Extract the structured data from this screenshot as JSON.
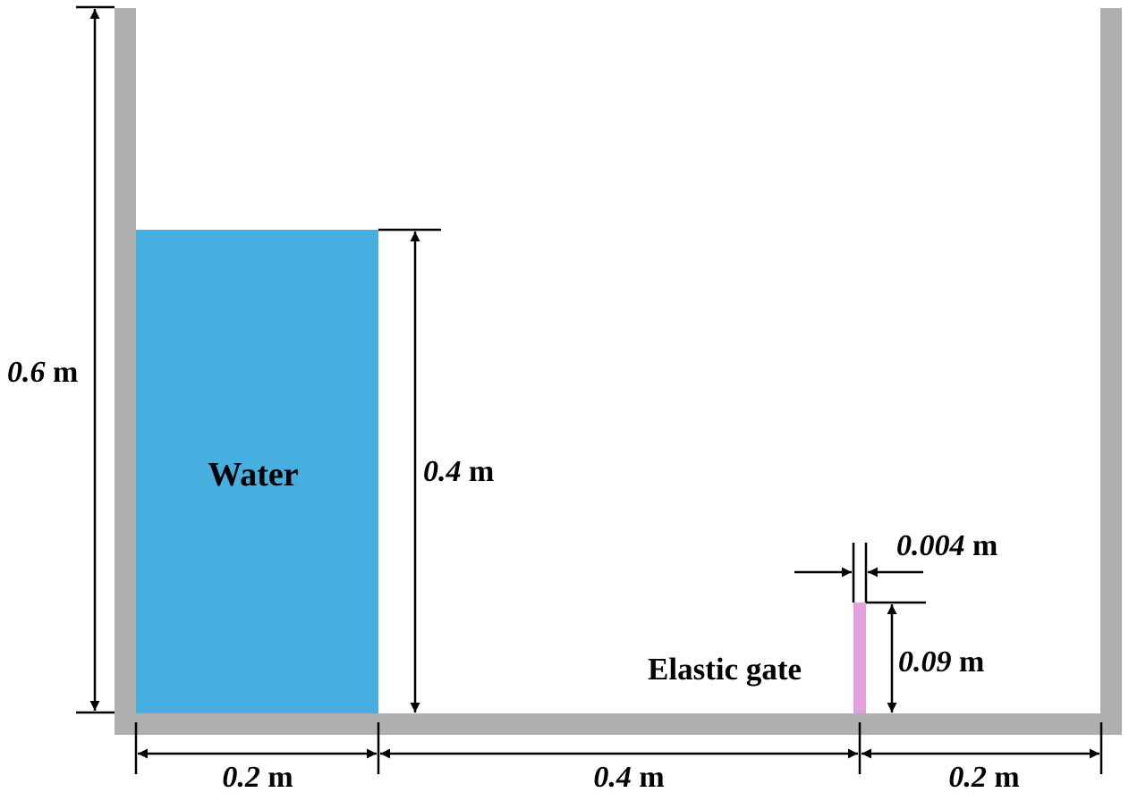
{
  "colors": {
    "wall": "#afafaf",
    "water": "#47afe0",
    "gate": "#e2a0dc",
    "dimension": "#000000",
    "background": "#ffffff"
  },
  "labels": {
    "water": "Water",
    "gate": "Elastic gate"
  },
  "dimensions": {
    "tank_height": {
      "value": "0.6",
      "unit": " m"
    },
    "water_height": {
      "value": "0.4",
      "unit": " m"
    },
    "gate_thickness": {
      "value": "0.004",
      "unit": " m"
    },
    "gate_height": {
      "value": "0.09",
      "unit": " m"
    },
    "water_width": {
      "value": "0.2",
      "unit": " m"
    },
    "gap_to_gate": {
      "value": "0.4",
      "unit": " m"
    },
    "gate_to_wall": {
      "value": "0.2",
      "unit": " m"
    }
  }
}
